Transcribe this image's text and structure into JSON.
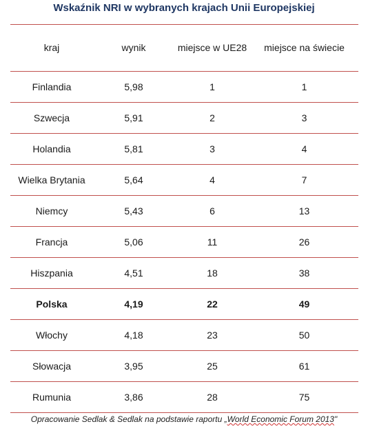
{
  "title": "Wskaźnik NRI w wybranych krajach Unii Europejskiej",
  "source_note": {
    "prefix": "Opracowanie Sedlak & Sedlak na podstawie raportu „",
    "highlight": "World Economic Forum 2013",
    "suffix": "\""
  },
  "colors": {
    "title": "#1f3763",
    "rule": "#c0504d"
  },
  "chart_data": {
    "type": "table",
    "title": "Wskaźnik NRI w wybranych krajach Unii Europejskiej",
    "columns": [
      "kraj",
      "wynik",
      "miejsce w UE28",
      "miejsce na świecie"
    ],
    "rows": [
      {
        "kraj": "Finlandia",
        "wynik": "5,98",
        "ue": "1",
        "swiat": "1",
        "bold": false
      },
      {
        "kraj": "Szwecja",
        "wynik": "5,91",
        "ue": "2",
        "swiat": "3",
        "bold": false
      },
      {
        "kraj": "Holandia",
        "wynik": "5,81",
        "ue": "3",
        "swiat": "4",
        "bold": false
      },
      {
        "kraj": "Wielka Brytania",
        "wynik": "5,64",
        "ue": "4",
        "swiat": "7",
        "bold": false
      },
      {
        "kraj": "Niemcy",
        "wynik": "5,43",
        "ue": "6",
        "swiat": "13",
        "bold": false
      },
      {
        "kraj": "Francja",
        "wynik": "5,06",
        "ue": "11",
        "swiat": "26",
        "bold": false
      },
      {
        "kraj": "Hiszpania",
        "wynik": "4,51",
        "ue": "18",
        "swiat": "38",
        "bold": false
      },
      {
        "kraj": "Polska",
        "wynik": "4,19",
        "ue": "22",
        "swiat": "49",
        "bold": true
      },
      {
        "kraj": "Włochy",
        "wynik": "4,18",
        "ue": "23",
        "swiat": "50",
        "bold": false
      },
      {
        "kraj": "Słowacja",
        "wynik": "3,95",
        "ue": "25",
        "swiat": "61",
        "bold": false
      },
      {
        "kraj": "Rumunia",
        "wynik": "3,86",
        "ue": "28",
        "swiat": "75",
        "bold": false
      }
    ]
  }
}
